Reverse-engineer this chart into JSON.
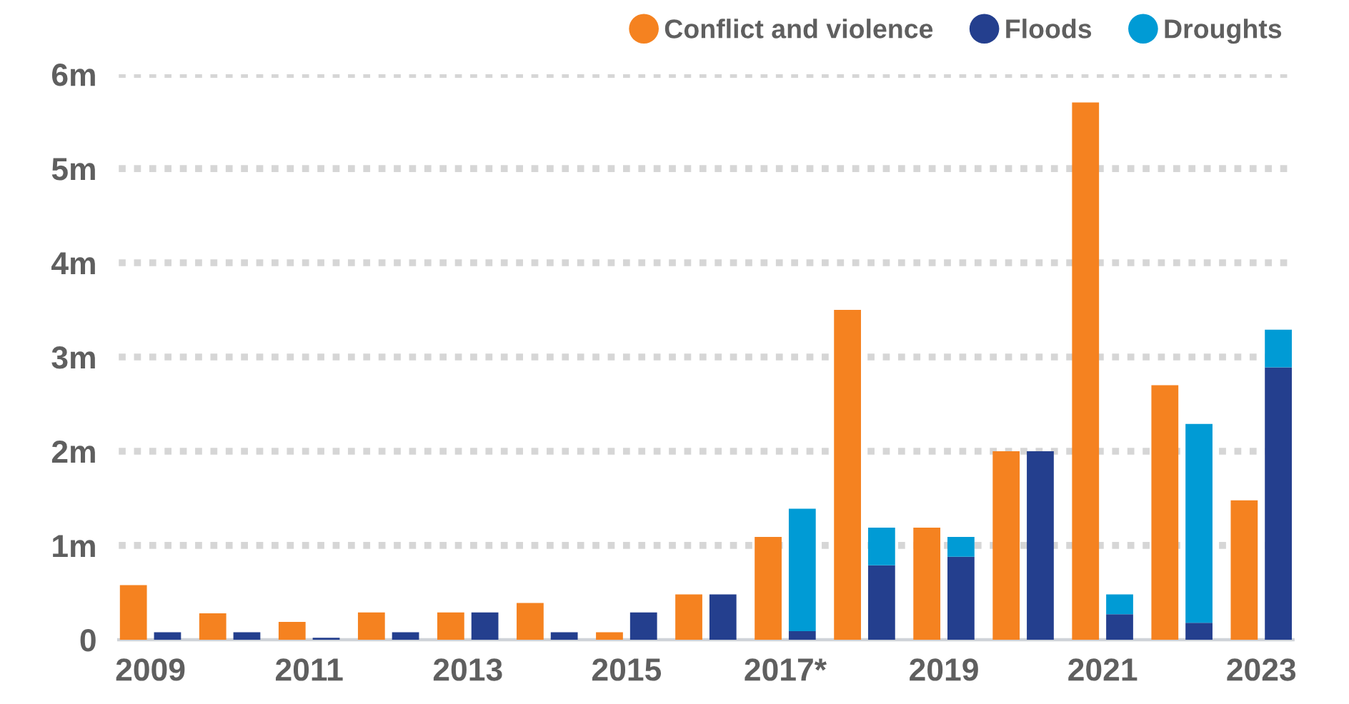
{
  "chart_data": {
    "type": "bar",
    "categories": [
      "2009",
      null,
      "2011",
      null,
      "2013",
      null,
      "2015",
      null,
      "2017*",
      null,
      "2019",
      null,
      "2021",
      null,
      "2023"
    ],
    "series": [
      {
        "name": "Conflict and violence",
        "color": "#f58220",
        "values": [
          0.58,
          0.28,
          0.19,
          0.29,
          0.29,
          0.39,
          0.08,
          0.48,
          1.09,
          3.5,
          1.19,
          2.0,
          5.7,
          2.7,
          1.48
        ]
      },
      {
        "name": "Floods",
        "color": "#243f8e",
        "values": [
          0.08,
          0.08,
          0.02,
          0.08,
          0.29,
          0.08,
          0.29,
          0.48,
          0.09,
          0.79,
          0.88,
          2.0,
          0.27,
          0.18,
          2.89
        ]
      },
      {
        "name": "Droughts",
        "color": "#009bd5",
        "values": [
          null,
          null,
          null,
          null,
          null,
          null,
          null,
          null,
          1.3,
          0.4,
          0.21,
          null,
          0.21,
          2.11,
          0.4
        ],
        "base": [
          null,
          null,
          null,
          null,
          null,
          null,
          null,
          null,
          0.09,
          0.79,
          0.88,
          null,
          0.27,
          0.18,
          2.89
        ]
      }
    ],
    "ylim": [
      0,
      6
    ],
    "yticks": [
      0,
      {
        "value": 1,
        "label": "1m"
      },
      {
        "value": 2,
        "label": "2m"
      },
      {
        "value": 3,
        "label": "3m"
      },
      {
        "value": 4,
        "label": "4m"
      },
      {
        "value": 5,
        "label": "5m"
      },
      {
        "value": 6,
        "label": "6m"
      }
    ],
    "grid": "y",
    "legend": "top right"
  }
}
